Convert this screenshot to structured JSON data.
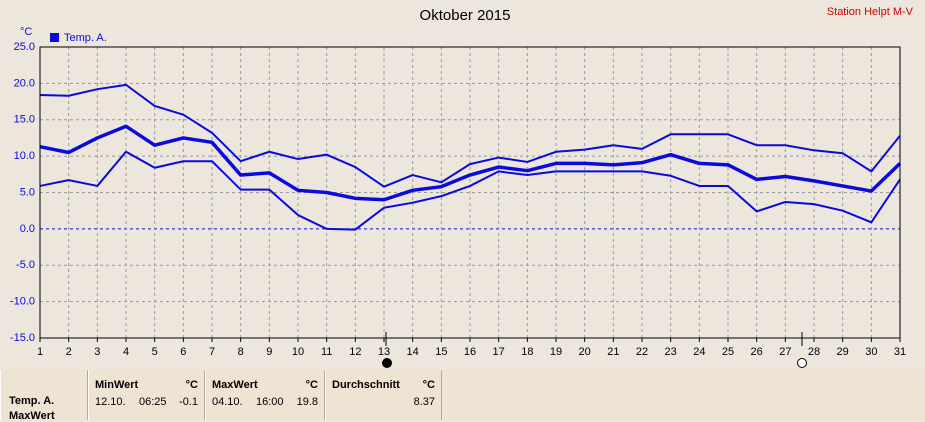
{
  "chart_data": {
    "type": "line",
    "title": "Oktober 2015",
    "subtitle": "Station Helpt M-V",
    "y_unit": "°C",
    "x": [
      1,
      2,
      3,
      4,
      5,
      6,
      7,
      8,
      9,
      10,
      11,
      12,
      13,
      14,
      15,
      16,
      17,
      18,
      19,
      20,
      21,
      22,
      23,
      24,
      25,
      26,
      27,
      28,
      29,
      30,
      31
    ],
    "xlim": [
      1,
      31
    ],
    "xticks": [
      1,
      2,
      3,
      4,
      5,
      6,
      7,
      8,
      9,
      10,
      11,
      12,
      13,
      14,
      15,
      16,
      17,
      18,
      19,
      20,
      21,
      22,
      23,
      24,
      25,
      26,
      27,
      28,
      29,
      30,
      31
    ],
    "ylim": [
      -15,
      25
    ],
    "yticks": [
      {
        "value": -15,
        "label": "-15.0"
      },
      {
        "value": -10,
        "label": "-10.0"
      },
      {
        "value": -5,
        "label": "-5.0"
      },
      {
        "value": 0,
        "label": "0.0"
      },
      {
        "value": 5,
        "label": "5.0"
      },
      {
        "value": 10,
        "label": "10.0"
      },
      {
        "value": 15,
        "label": "15.0"
      },
      {
        "value": 20,
        "label": "20.0"
      },
      {
        "value": 25,
        "label": "25.0"
      }
    ],
    "grid": true,
    "series": [
      {
        "name": "Temp. A.",
        "color": "#0a0adc",
        "values": [
          11.3,
          10.5,
          12.5,
          14.1,
          11.5,
          12.5,
          11.9,
          7.4,
          7.7,
          5.3,
          5.0,
          4.2,
          4.0,
          5.3,
          5.8,
          7.4,
          8.5,
          8.0,
          9.0,
          9.0,
          8.8,
          9.1,
          10.2,
          9.0,
          8.8,
          6.8,
          7.2,
          6.6,
          5.9,
          5.2,
          9.0
        ]
      },
      {
        "color": "#0a0adc",
        "values": [
          18.4,
          18.3,
          19.2,
          19.8,
          16.9,
          15.7,
          13.2,
          9.3,
          10.6,
          9.6,
          10.2,
          8.5,
          5.8,
          7.4,
          6.4,
          8.9,
          9.8,
          9.2,
          10.6,
          10.9,
          11.5,
          11.0,
          13.0,
          13.0,
          13.0,
          11.5,
          11.5,
          10.8,
          10.4,
          7.9,
          12.8
        ]
      },
      {
        "color": "#0a0adc",
        "values": [
          5.9,
          6.7,
          5.9,
          10.6,
          8.4,
          9.3,
          9.3,
          5.4,
          5.4,
          1.9,
          0.0,
          -0.1,
          2.9,
          3.6,
          4.5,
          5.9,
          7.9,
          7.4,
          7.9,
          7.9,
          7.9,
          7.9,
          7.3,
          5.9,
          5.9,
          2.4,
          3.7,
          3.4,
          2.5,
          0.9,
          6.8
        ]
      }
    ]
  },
  "table": {
    "row_labels": [
      "Temp. A.",
      "MaxWert"
    ],
    "columns": [
      {
        "title": "MinWert",
        "unit": "°C",
        "date": "12.10.",
        "time": "06:25",
        "value": "-0.1"
      },
      {
        "title": "MaxWert",
        "unit": "°C",
        "date": "04.10.",
        "time": "16:00",
        "value": "19.8"
      },
      {
        "title": "Durchschnitt",
        "unit": "°C",
        "value": "8.37"
      }
    ]
  }
}
